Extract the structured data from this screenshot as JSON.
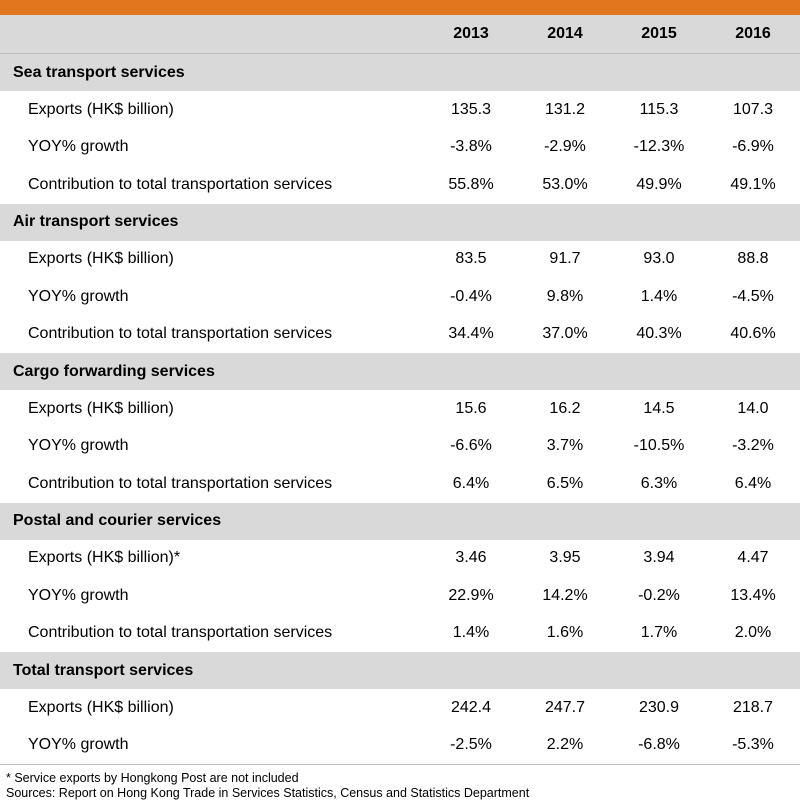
{
  "colors": {
    "accent": "#e2761f",
    "header_bg": "#d9d9d9"
  },
  "table": {
    "years": [
      "2013",
      "2014",
      "2015",
      "2016"
    ],
    "sections": [
      {
        "title": "Sea transport services",
        "rows": [
          {
            "label": "Exports (HK$ billion)",
            "values": [
              "135.3",
              "131.2",
              "115.3",
              "107.3"
            ]
          },
          {
            "label": "YOY% growth",
            "values": [
              "-3.8%",
              "-2.9%",
              "-12.3%",
              "-6.9%"
            ]
          },
          {
            "label": "Contribution to total transportation services",
            "values": [
              "55.8%",
              "53.0%",
              "49.9%",
              "49.1%"
            ]
          }
        ]
      },
      {
        "title": "Air transport services",
        "rows": [
          {
            "label": "Exports (HK$ billion)",
            "values": [
              "83.5",
              "91.7",
              "93.0",
              "88.8"
            ]
          },
          {
            "label": "YOY% growth",
            "values": [
              "-0.4%",
              "9.8%",
              "1.4%",
              "-4.5%"
            ]
          },
          {
            "label": "Contribution to total transportation services",
            "values": [
              "34.4%",
              "37.0%",
              "40.3%",
              "40.6%"
            ]
          }
        ]
      },
      {
        "title": "Cargo forwarding services",
        "rows": [
          {
            "label": "Exports (HK$ billion)",
            "values": [
              "15.6",
              "16.2",
              "14.5",
              "14.0"
            ]
          },
          {
            "label": "YOY% growth",
            "values": [
              "-6.6%",
              "3.7%",
              "-10.5%",
              "-3.2%"
            ]
          },
          {
            "label": "Contribution to total transportation services",
            "values": [
              "6.4%",
              "6.5%",
              "6.3%",
              "6.4%"
            ]
          }
        ]
      },
      {
        "title": "Postal and courier services",
        "rows": [
          {
            "label": "Exports (HK$ billion)*",
            "values": [
              "3.46",
              "3.95",
              "3.94",
              "4.47"
            ]
          },
          {
            "label": "YOY% growth",
            "values": [
              "22.9%",
              "14.2%",
              "-0.2%",
              "13.4%"
            ]
          },
          {
            "label": "Contribution to total transportation services",
            "values": [
              "1.4%",
              "1.6%",
              "1.7%",
              "2.0%"
            ]
          }
        ]
      },
      {
        "title": "Total transport services",
        "rows": [
          {
            "label": "Exports (HK$ billion)",
            "values": [
              "242.4",
              "247.7",
              "230.9",
              "218.7"
            ]
          },
          {
            "label": "YOY% growth",
            "values": [
              "-2.5%",
              "2.2%",
              "-6.8%",
              "-5.3%"
            ]
          }
        ]
      }
    ]
  },
  "notes": {
    "footnote": "* Service exports by Hongkong Post are not included",
    "sources": "Sources: Report on Hong Kong Trade in Services Statistics, Census and Statistics Department"
  }
}
